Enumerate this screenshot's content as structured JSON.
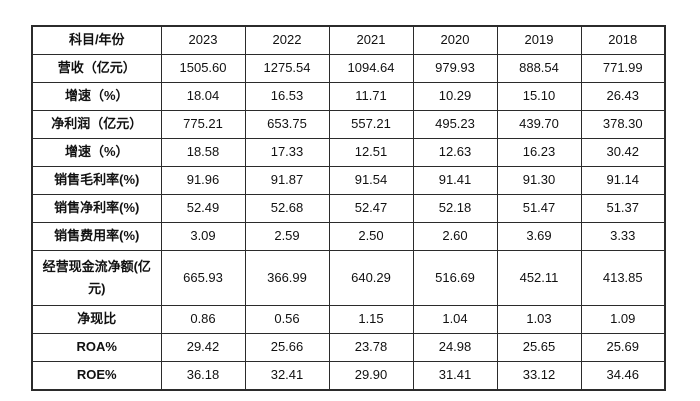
{
  "colors": {
    "background": "#ffffff",
    "border": "#2b2b2b",
    "text": "#111111"
  },
  "chart_data": {
    "type": "table",
    "title": "",
    "columns": [
      "科目/年份",
      "2023",
      "2022",
      "2021",
      "2020",
      "2019",
      "2018"
    ],
    "rows": [
      {
        "label": "营收（亿元）",
        "values": [
          "1505.60",
          "1275.54",
          "1094.64",
          "979.93",
          "888.54",
          "771.99"
        ]
      },
      {
        "label": "增速（%）",
        "values": [
          "18.04",
          "16.53",
          "11.71",
          "10.29",
          "15.10",
          "26.43"
        ]
      },
      {
        "label": "净利润（亿元）",
        "values": [
          "775.21",
          "653.75",
          "557.21",
          "495.23",
          "439.70",
          "378.30"
        ]
      },
      {
        "label": "增速（%）",
        "values": [
          "18.58",
          "17.33",
          "12.51",
          "12.63",
          "16.23",
          "30.42"
        ]
      },
      {
        "label": "销售毛利率(%)",
        "values": [
          "91.96",
          "91.87",
          "91.54",
          "91.41",
          "91.30",
          "91.14"
        ]
      },
      {
        "label": "销售净利率(%)",
        "values": [
          "52.49",
          "52.68",
          "52.47",
          "52.18",
          "51.47",
          "51.37"
        ]
      },
      {
        "label": "销售费用率(%)",
        "values": [
          "3.09",
          "2.59",
          "2.50",
          "2.60",
          "3.69",
          "3.33"
        ]
      },
      {
        "label": "经营现金流净额(亿元)",
        "values": [
          "665.93",
          "366.99",
          "640.29",
          "516.69",
          "452.11",
          "413.85"
        ]
      },
      {
        "label": "净现比",
        "values": [
          "0.86",
          "0.56",
          "1.15",
          "1.04",
          "1.03",
          "1.09"
        ]
      },
      {
        "label": "ROA%",
        "values": [
          "29.42",
          "25.66",
          "23.78",
          "24.98",
          "25.65",
          "25.69"
        ]
      },
      {
        "label": "ROE%",
        "values": [
          "36.18",
          "32.41",
          "29.90",
          "31.41",
          "33.12",
          "34.46"
        ]
      }
    ]
  }
}
